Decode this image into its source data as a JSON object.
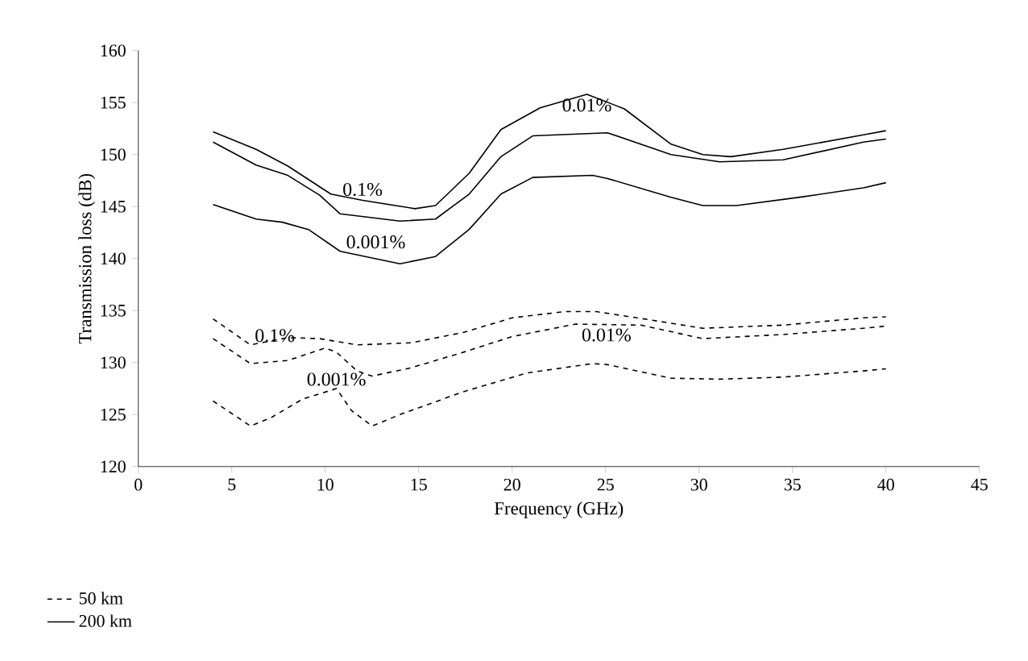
{
  "chart_data": {
    "type": "line",
    "xlabel": "Frequency (GHz)",
    "ylabel": "Transmission loss (dB)",
    "xlim": [
      0,
      45
    ],
    "xticks": [
      0,
      5,
      10,
      15,
      20,
      25,
      30,
      35,
      40,
      45
    ],
    "ylim": [
      120,
      160
    ],
    "yticks": [
      120,
      125,
      130,
      135,
      140,
      145,
      150,
      155,
      160
    ],
    "legend": "bottom",
    "series": [
      {
        "name": "50 km",
        "color": "#000000",
        "line_style": "dashed",
        "x": [
          4,
          6,
          8,
          9.7,
          11.7,
          14.6,
          17.4,
          20,
          22.8,
          24.5,
          27.4,
          30.2,
          34.5,
          38.8,
          40
        ],
        "values": [
          134.2,
          131.7,
          132.4,
          132.3,
          131.7,
          131.9,
          132.9,
          134.3,
          134.9,
          134.9,
          134.1,
          133.3,
          133.6,
          134.3,
          134.4
        ]
      },
      {
        "color": "#000000",
        "line_style": "dashed",
        "x": [
          4,
          6,
          8,
          10,
          10.6,
          11.7,
          12.5,
          14.6,
          17.4,
          20,
          23.4,
          26.9,
          30.2,
          34.5,
          38.8,
          40
        ],
        "values": [
          132.3,
          129.9,
          130.2,
          131.4,
          131,
          129.2,
          128.7,
          129.5,
          131,
          132.5,
          133.7,
          133.6,
          132.3,
          132.7,
          133.3,
          133.5
        ]
      },
      {
        "color": "#000000",
        "line_style": "dashed",
        "x": [
          4,
          6,
          7.1,
          8.8,
          10.6,
          11.4,
          12.5,
          14,
          17.4,
          20.8,
          24.3,
          25.1,
          28.5,
          31.1,
          34.5,
          38.8,
          40
        ],
        "values": [
          126.3,
          123.9,
          124.7,
          126.5,
          127.5,
          125.4,
          123.9,
          125,
          127.2,
          129,
          129.9,
          129.8,
          128.5,
          128.4,
          128.6,
          129.2,
          129.4
        ]
      },
      {
        "name": "200 km",
        "color": "#000000",
        "line_style": "solid",
        "x": [
          4,
          6.3,
          8,
          10.3,
          12,
          14.8,
          15.9,
          17.7,
          19.4,
          21.5,
          24,
          26,
          28.5,
          30.2,
          31.7,
          34.5,
          38.8,
          40
        ],
        "values": [
          152.2,
          150.5,
          148.9,
          146.2,
          145.6,
          144.8,
          145.1,
          148.2,
          152.4,
          154.5,
          155.8,
          154.4,
          151,
          150,
          149.8,
          150.5,
          151.9,
          152.3
        ]
      },
      {
        "color": "#000000",
        "line_style": "solid",
        "x": [
          4,
          6.3,
          8,
          9.7,
          10.8,
          14,
          15.9,
          17.7,
          19.4,
          21.1,
          25.1,
          28.5,
          31.1,
          34.5,
          38.8,
          40
        ],
        "values": [
          151.2,
          149,
          148,
          146.1,
          144.3,
          143.6,
          143.8,
          146.2,
          149.8,
          151.8,
          152.1,
          150,
          149.3,
          149.5,
          151.2,
          151.5
        ]
      },
      {
        "color": "#000000",
        "line_style": "solid",
        "x": [
          4,
          6.3,
          7.7,
          9.1,
          10.8,
          14,
          15.9,
          17.7,
          19.4,
          21.1,
          24.3,
          25.1,
          28.5,
          30.2,
          32,
          35.4,
          38.8,
          40
        ],
        "values": [
          145.2,
          143.8,
          143.5,
          142.8,
          140.7,
          139.5,
          140.2,
          142.8,
          146.2,
          147.8,
          148,
          147.7,
          145.9,
          145.1,
          145.1,
          145.9,
          146.8,
          147.3
        ]
      }
    ],
    "annotations": [
      "0.1%",
      "0.01%",
      "0.001%",
      "0.01%",
      "0.1%",
      "0.001%"
    ]
  }
}
